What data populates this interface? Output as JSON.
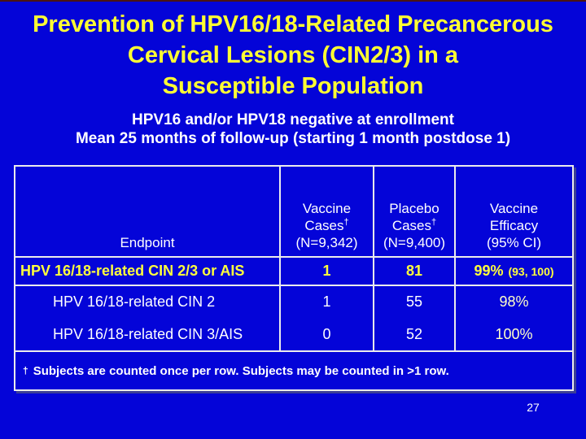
{
  "slide": {
    "title": "Prevention of HPV16/18-Related Precancerous\nCervical Lesions (CIN2/3) in a\nSusceptible Population",
    "subtitle": "HPV16 and/or HPV18 negative at enrollment\nMean 25 months of follow-up (starting 1 month postdose 1)",
    "page_number": "27"
  },
  "colors": {
    "background": "#0404D8",
    "title_yellow": "#FFFF33",
    "highlight_yellow": "#FFFF3C",
    "text_white": "#FFFFFF",
    "efficacy_pale_yellow": "#FFFFC8",
    "table_border": "#ECECEC"
  },
  "table": {
    "headers": {
      "endpoint": "Endpoint",
      "vaccine": {
        "line1": "Vaccine",
        "line2": "Cases",
        "sup": "†",
        "line3": "(N=9,342)"
      },
      "placebo": {
        "line1": "Placebo",
        "line2": "Cases",
        "sup": "†",
        "line3": "(N=9,400)"
      },
      "efficacy": {
        "line1": "Vaccine",
        "line2": "Efficacy",
        "line3": "(95% CI)"
      }
    },
    "rows": [
      {
        "endpoint": "HPV 16/18-related CIN 2/3 or AIS",
        "vaccine_cases": "1",
        "placebo_cases": "81",
        "efficacy": "99%",
        "efficacy_ci": "(93, 100)"
      },
      {
        "endpoint": "HPV 16/18-related CIN 2",
        "vaccine_cases": "1",
        "placebo_cases": "55",
        "efficacy": "98%"
      },
      {
        "endpoint": "HPV 16/18-related CIN 3/AIS",
        "vaccine_cases": "0",
        "placebo_cases": "52",
        "efficacy": "100%"
      }
    ]
  },
  "footnote": {
    "dagger": "†",
    "text": "Subjects are counted once per row. Subjects may be counted in >1 row."
  }
}
